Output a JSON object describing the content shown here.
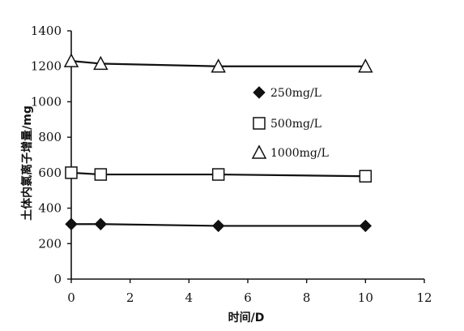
{
  "chart_data": {
    "type": "line",
    "title": "",
    "xlabel": "时间/D",
    "ylabel": "土体内氯离子增量/mg",
    "xlim": [
      0,
      12
    ],
    "ylim": [
      0,
      1400
    ],
    "xticks": [
      "0",
      "2",
      "4",
      "6",
      "8",
      "10",
      "12"
    ],
    "yticks": [
      "0",
      "200",
      "400",
      "600",
      "800",
      "1000",
      "1200",
      "1400"
    ],
    "grid": false,
    "legend_position": "right",
    "series": [
      {
        "name": "250mg/L",
        "marker": "diamond-filled",
        "x": [
          0,
          1,
          5,
          10
        ],
        "y": [
          310,
          310,
          300,
          300
        ]
      },
      {
        "name": "500mg/L",
        "marker": "square-open",
        "x": [
          0,
          1,
          5,
          10
        ],
        "y": [
          600,
          590,
          590,
          580
        ]
      },
      {
        "name": "1000mg/L",
        "marker": "triangle-open",
        "x": [
          0,
          1,
          5,
          10
        ],
        "y": [
          1230,
          1215,
          1200,
          1200
        ]
      }
    ],
    "color": "#111111"
  }
}
